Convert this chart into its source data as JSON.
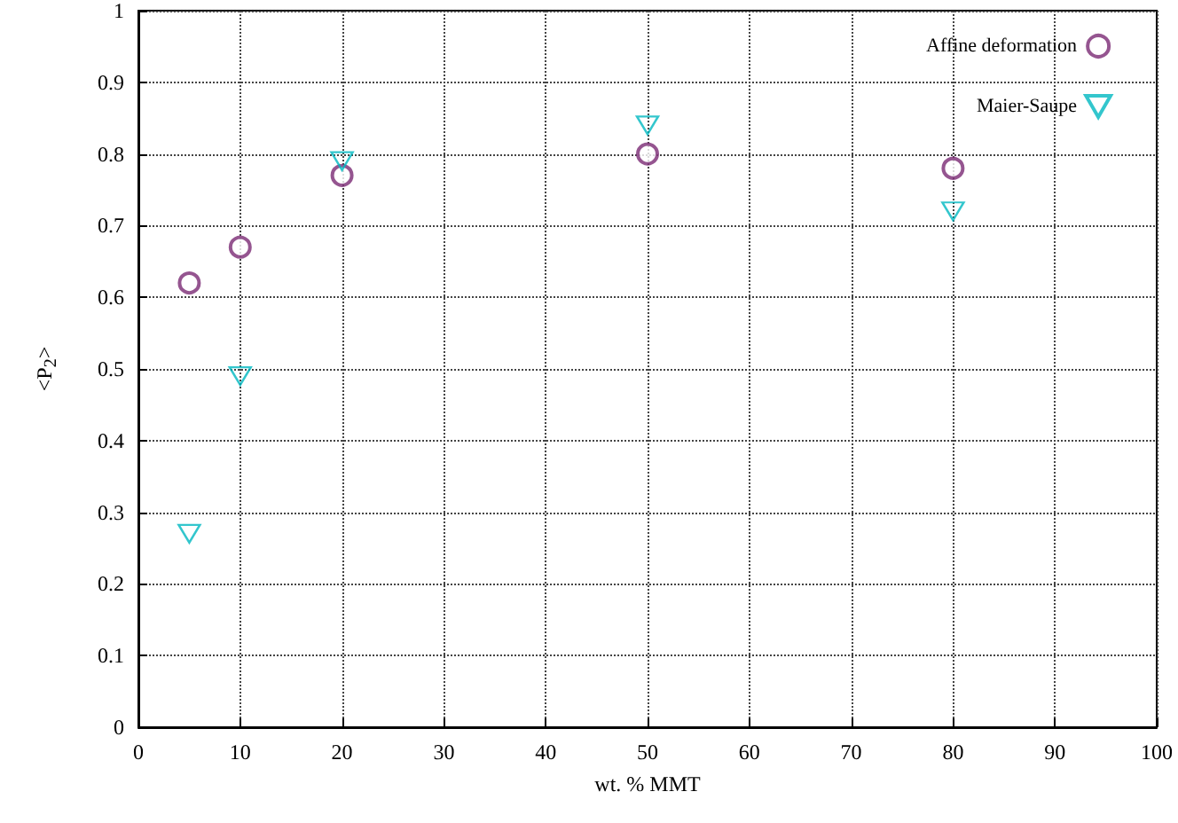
{
  "chart_data": {
    "type": "scatter",
    "xlabel": "wt. % MMT",
    "ylabel": "<P$_{2}$>",
    "x": [
      5,
      10,
      20,
      50,
      80
    ],
    "series": [
      {
        "name": "Affine deformation",
        "color": "#7b2a74",
        "marker": "circle",
        "values": [
          0.62,
          0.67,
          0.77,
          0.8,
          0.78
        ]
      },
      {
        "name": "Maier-Saupe",
        "color": "#00b8c0",
        "marker": "triangle",
        "values": [
          0.27,
          0.49,
          0.79,
          0.84,
          0.72
        ]
      }
    ],
    "xlim": [
      0,
      100
    ],
    "xticks": [
      0,
      10,
      20,
      30,
      40,
      50,
      60,
      70,
      80,
      90,
      100
    ],
    "ylim": [
      0,
      1
    ],
    "yticks": [
      0,
      0.1,
      0.2,
      0.3,
      0.4,
      0.5,
      0.6,
      0.7,
      0.8,
      0.9,
      1
    ],
    "grid": true,
    "legend": "top right"
  }
}
